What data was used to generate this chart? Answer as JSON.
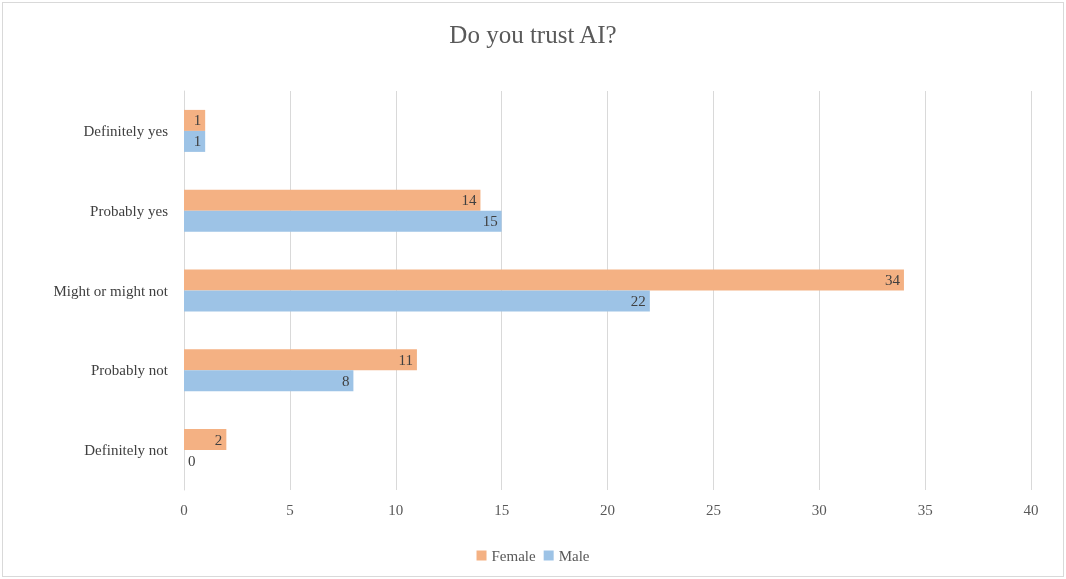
{
  "chart_data": {
    "type": "bar",
    "title": "Do you trust AI?",
    "orientation": "horizontal",
    "categories": [
      "Definitely yes",
      "Probably yes",
      "Might or might not",
      "Probably not",
      "Definitely not"
    ],
    "series": [
      {
        "name": "Female",
        "color": "#f4b183",
        "values": [
          1,
          14,
          34,
          11,
          2
        ]
      },
      {
        "name": "Male",
        "color": "#9dc3e6",
        "values": [
          1,
          15,
          22,
          8,
          0
        ]
      }
    ],
    "xlim": [
      0,
      40
    ],
    "xticks": [
      0,
      5,
      10,
      15,
      20,
      25,
      30,
      35,
      40
    ],
    "grid": "x",
    "legend": "bottom",
    "data_labels": true
  }
}
